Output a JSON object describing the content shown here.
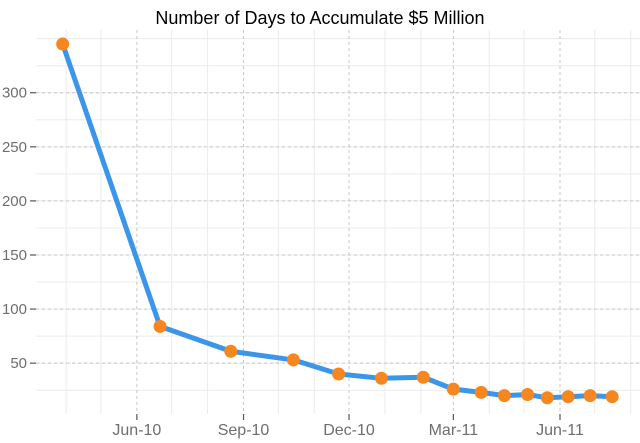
{
  "title": "Number of Days to Accumulate $5 Million",
  "chart_data": {
    "type": "line",
    "title": "Number of Days to Accumulate $5 Million",
    "xlabel": "",
    "ylabel": "",
    "legend": "none",
    "x_axis": {
      "type": "date",
      "range": [
        "2010-03-06",
        "2011-08-09"
      ],
      "major_ticks": [
        {
          "date": "2010-06-01",
          "label": "Jun-10"
        },
        {
          "date": "2010-09-01",
          "label": "Sep-10"
        },
        {
          "date": "2010-12-01",
          "label": "Dec-10"
        },
        {
          "date": "2011-03-01",
          "label": "Mar-11"
        },
        {
          "date": "2011-06-01",
          "label": "Jun-11"
        }
      ],
      "minor_gridlines": "monthly",
      "grid_major_style": "dashed",
      "grid_minor_style": "solid"
    },
    "y_axis": {
      "range": [
        3,
        358
      ],
      "major_ticks": [
        50,
        100,
        150,
        200,
        250,
        300
      ],
      "minor_step": 25,
      "minor_max": 350,
      "grid_major_style": "dashed",
      "grid_minor_style": "solid"
    },
    "series": [
      {
        "name": "days-to-accumulate-5-million",
        "points": [
          {
            "date": "2010-03-29",
            "value": 345
          },
          {
            "date": "2010-06-21",
            "value": 84
          },
          {
            "date": "2010-08-21",
            "value": 61
          },
          {
            "date": "2010-10-14",
            "value": 53
          },
          {
            "date": "2010-11-22",
            "value": 40
          },
          {
            "date": "2010-12-29",
            "value": 36
          },
          {
            "date": "2011-02-03",
            "value": 37
          },
          {
            "date": "2011-03-01",
            "value": 26
          },
          {
            "date": "2011-03-25",
            "value": 23
          },
          {
            "date": "2011-04-14",
            "value": 20
          },
          {
            "date": "2011-05-04",
            "value": 21
          },
          {
            "date": "2011-05-21",
            "value": 18
          },
          {
            "date": "2011-06-08",
            "value": 19
          },
          {
            "date": "2011-06-27",
            "value": 20
          },
          {
            "date": "2011-07-16",
            "value": 19
          }
        ]
      }
    ],
    "colors": {
      "background": "#FFFFFF",
      "title_text": "#000000",
      "grid_major": "#C7C7C7",
      "grid_minor": "#EBEBEB",
      "tick": "#555555",
      "tick_label": "#6E6E6E",
      "line": "#3B95E9",
      "marker": "#F6861F"
    },
    "style": {
      "line_width": 5,
      "marker_radius": 6.5
    }
  }
}
